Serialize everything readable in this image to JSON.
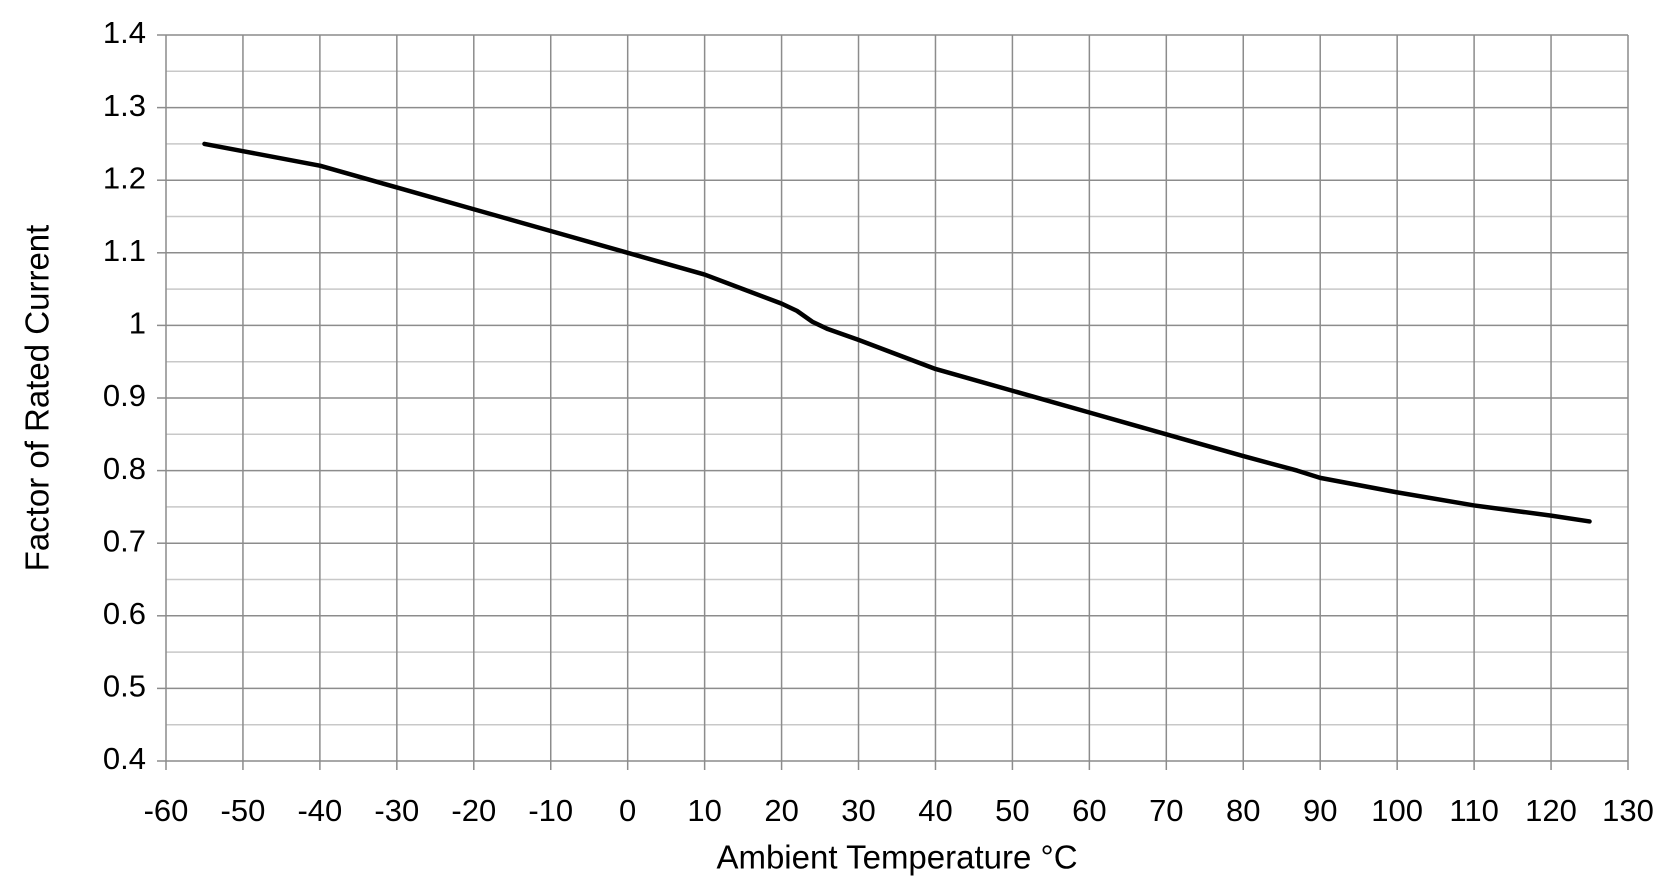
{
  "chart_data": {
    "type": "line",
    "x_label": "Ambient Temperature °C",
    "y_label": "Factor of Rated Current",
    "x": [
      -55,
      -50,
      -40,
      -35,
      -30,
      -20,
      -10,
      0,
      10,
      15,
      20,
      22,
      24,
      26,
      30,
      40,
      50,
      60,
      70,
      80,
      87,
      90,
      100,
      110,
      120,
      125
    ],
    "series": [
      {
        "name": "Factor of Rated Current",
        "color": "#000000",
        "values": [
          1.25,
          1.24,
          1.22,
          1.205,
          1.19,
          1.16,
          1.13,
          1.1,
          1.07,
          1.05,
          1.03,
          1.02,
          1.005,
          0.995,
          0.98,
          0.94,
          0.91,
          0.88,
          0.85,
          0.82,
          0.8,
          0.79,
          0.77,
          0.752,
          0.738,
          0.73
        ]
      }
    ],
    "xlim": [
      -60,
      130
    ],
    "xticks": [
      -60,
      -50,
      -40,
      -30,
      -20,
      -10,
      0,
      10,
      20,
      30,
      40,
      50,
      60,
      70,
      80,
      90,
      100,
      110,
      120,
      130
    ],
    "ylim": [
      0.4,
      1.4
    ],
    "yticks": [
      0.4,
      0.5,
      0.6,
      0.7,
      0.8,
      0.9,
      1,
      1.1,
      1.2,
      1.3,
      1.4
    ],
    "yminor": [
      0.45,
      0.55,
      0.65,
      0.75,
      0.85,
      0.95,
      1.05,
      1.15,
      1.25,
      1.35
    ],
    "grid": true
  }
}
